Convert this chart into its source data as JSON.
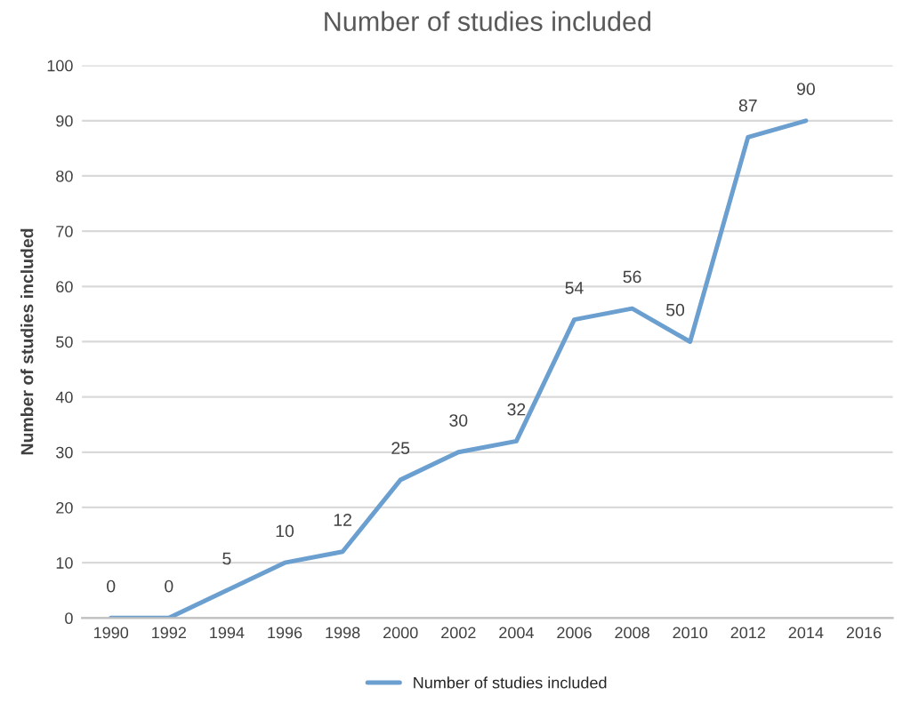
{
  "chart_data": {
    "type": "line",
    "title": "Number of studies included",
    "ylabel": "Number of studies included",
    "categories": [
      "1990",
      "1992",
      "1994",
      "1996",
      "1998",
      "2000",
      "2002",
      "2004",
      "2006",
      "2008",
      "2010",
      "2012",
      "2014",
      "2016"
    ],
    "series": [
      {
        "name": "Number of studies included",
        "color": "#6a9fd0",
        "values": [
          0,
          0,
          5,
          10,
          12,
          25,
          30,
          32,
          54,
          56,
          50,
          87,
          90,
          null
        ]
      }
    ],
    "ylim": [
      0,
      100
    ],
    "yticks": [
      0,
      10,
      20,
      30,
      40,
      50,
      60,
      70,
      80,
      90,
      100
    ],
    "grid": "y",
    "legend": "bottom",
    "data_labels": true,
    "marker": "none",
    "line_style": "solid"
  }
}
